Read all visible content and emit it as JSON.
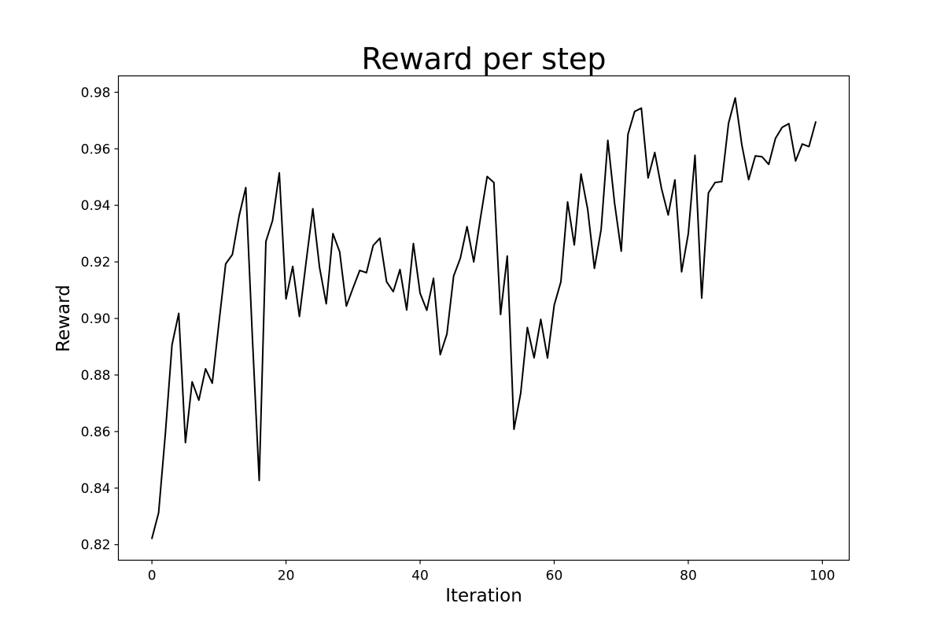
{
  "chart_data": {
    "type": "line",
    "title": "Reward per step",
    "xlabel": "Iteration",
    "ylabel": "Reward",
    "xlim": [
      -5,
      104
    ],
    "ylim": [
      0.8145,
      0.9858
    ],
    "x_ticks": [
      0,
      20,
      40,
      60,
      80,
      100
    ],
    "x_tick_labels": [
      "0",
      "20",
      "40",
      "60",
      "80",
      "100"
    ],
    "y_ticks": [
      0.82,
      0.84,
      0.86,
      0.88,
      0.9,
      0.92,
      0.94,
      0.96,
      0.98
    ],
    "y_tick_labels": [
      "0.82",
      "0.84",
      "0.86",
      "0.88",
      "0.90",
      "0.92",
      "0.94",
      "0.96",
      "0.98"
    ],
    "grid": false,
    "line_color": "#000000",
    "series": [
      {
        "x": [
          0,
          1,
          2,
          3,
          4,
          5,
          6,
          7,
          8,
          9,
          10,
          11,
          12,
          13,
          14,
          15,
          16,
          17,
          18,
          19,
          20,
          21,
          22,
          23,
          24,
          25,
          26,
          27,
          28,
          29,
          30,
          31,
          32,
          33,
          34,
          35,
          36,
          37,
          38,
          39,
          40,
          41,
          42,
          43,
          44,
          45,
          46,
          47,
          48,
          49,
          50,
          51,
          52,
          53,
          54,
          55,
          56,
          57,
          58,
          59,
          60,
          61,
          62,
          63,
          64,
          65,
          66,
          67,
          68,
          69,
          70,
          71,
          72,
          73,
          74,
          75,
          76,
          77,
          78,
          79,
          80,
          81,
          82,
          83,
          84,
          85,
          86,
          87,
          88,
          89,
          90,
          91,
          92,
          93,
          94,
          95,
          96,
          97,
          98,
          99
        ],
        "values": [
          0.8222,
          0.8313,
          0.8591,
          0.8907,
          0.9018,
          0.8561,
          0.8776,
          0.8711,
          0.8822,
          0.8771,
          0.8985,
          0.9193,
          0.9226,
          0.9362,
          0.9463,
          0.8925,
          0.8427,
          0.9272,
          0.9347,
          0.9515,
          0.9069,
          0.9184,
          0.9007,
          0.92,
          0.9388,
          0.9181,
          0.9052,
          0.93,
          0.9236,
          0.9044,
          0.9108,
          0.917,
          0.9162,
          0.9258,
          0.9284,
          0.913,
          0.9095,
          0.9173,
          0.903,
          0.9265,
          0.9089,
          0.9029,
          0.9142,
          0.8872,
          0.8945,
          0.915,
          0.9213,
          0.9325,
          0.92,
          0.9355,
          0.9502,
          0.9481,
          0.9014,
          0.9221,
          0.8608,
          0.8735,
          0.8968,
          0.8861,
          0.8997,
          0.886,
          0.9047,
          0.913,
          0.9412,
          0.926,
          0.9511,
          0.9385,
          0.9177,
          0.9315,
          0.963,
          0.9409,
          0.9238,
          0.9651,
          0.9732,
          0.9744,
          0.9497,
          0.9587,
          0.946,
          0.9366,
          0.949,
          0.9165,
          0.93,
          0.9577,
          0.9072,
          0.9444,
          0.9481,
          0.9484,
          0.969,
          0.978,
          0.9612,
          0.9491,
          0.9575,
          0.9572,
          0.9545,
          0.9637,
          0.9676,
          0.9689,
          0.9557,
          0.9617,
          0.9608,
          0.9695
        ]
      }
    ]
  }
}
